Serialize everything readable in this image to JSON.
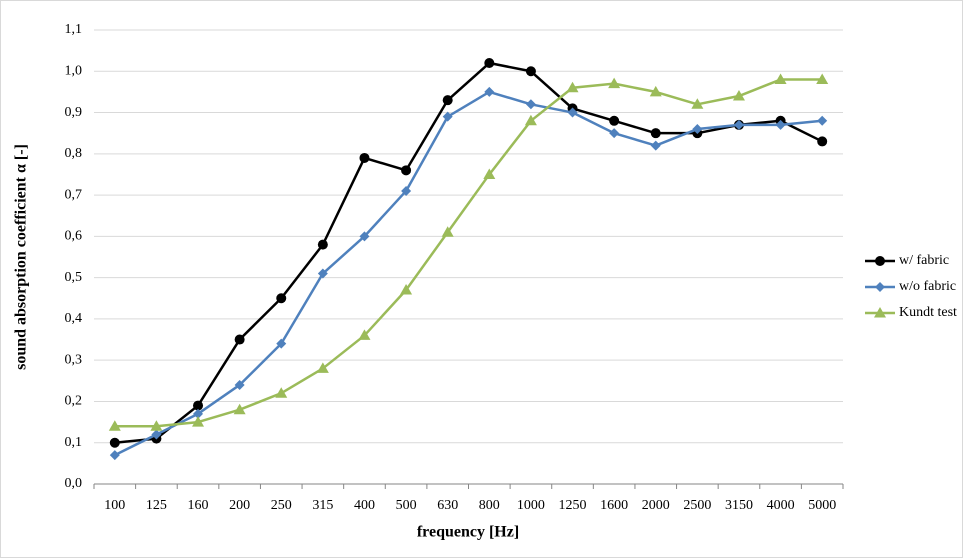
{
  "chart_data": {
    "type": "line",
    "x_label": "frequency [Hz]",
    "y_label": "sound absorption coefficient α [-]",
    "categories": [
      "100",
      "125",
      "160",
      "200",
      "250",
      "315",
      "400",
      "500",
      "630",
      "800",
      "1000",
      "1250",
      "1600",
      "2000",
      "2500",
      "3150",
      "4000",
      "5000"
    ],
    "series": [
      {
        "name": "w/ fabric",
        "color": "#000000",
        "marker": "circle",
        "values": [
          0.1,
          0.11,
          0.19,
          0.35,
          0.45,
          0.58,
          0.79,
          0.76,
          0.93,
          1.02,
          1.0,
          0.91,
          0.88,
          0.85,
          0.85,
          0.87,
          0.88,
          0.83
        ]
      },
      {
        "name": "w/o fabric",
        "color": "#4f81bd",
        "marker": "diamond",
        "values": [
          0.07,
          0.12,
          0.17,
          0.24,
          0.34,
          0.51,
          0.6,
          0.71,
          0.89,
          0.95,
          0.92,
          0.9,
          0.85,
          0.82,
          0.86,
          0.87,
          0.87,
          0.88
        ]
      },
      {
        "name": "Kundt test",
        "color": "#9bbb59",
        "marker": "triangle",
        "values": [
          0.14,
          0.14,
          0.15,
          0.18,
          0.22,
          0.28,
          0.36,
          0.47,
          0.61,
          0.75,
          0.88,
          0.96,
          0.97,
          0.95,
          0.92,
          0.94,
          0.98,
          0.98
        ]
      }
    ],
    "ylim": [
      0,
      1.1
    ],
    "yticks": [
      {
        "value": 0,
        "label": "0,0"
      },
      {
        "value": 0.1,
        "label": "0,1"
      },
      {
        "value": 0.2,
        "label": "0,2"
      },
      {
        "value": 0.3,
        "label": "0,3"
      },
      {
        "value": 0.4,
        "label": "0,4"
      },
      {
        "value": 0.5,
        "label": "0,5"
      },
      {
        "value": 0.6,
        "label": "0,6"
      },
      {
        "value": 0.7,
        "label": "0,7"
      },
      {
        "value": 0.8,
        "label": "0,8"
      },
      {
        "value": 0.9,
        "label": "0,9"
      },
      {
        "value": 1.0,
        "label": "1,0"
      },
      {
        "value": 1.1,
        "label": "1,1"
      }
    ],
    "grid": true,
    "legend": "right"
  }
}
